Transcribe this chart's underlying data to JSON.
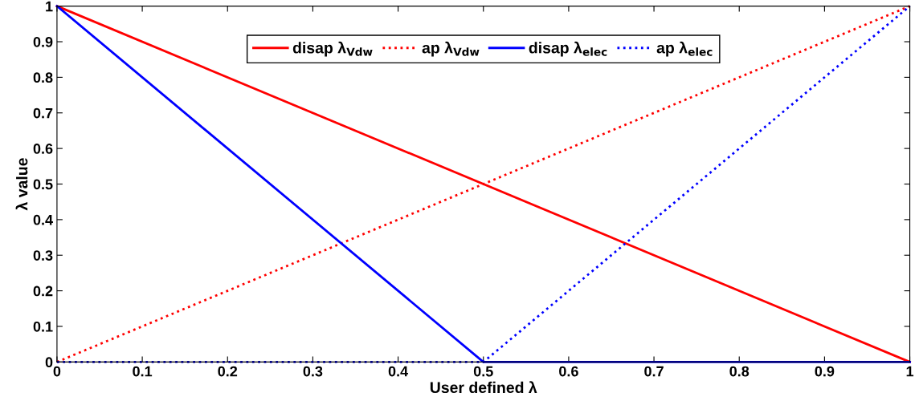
{
  "chart_data": {
    "type": "line",
    "xlabel": "User defined λ",
    "ylabel": "λ value",
    "xlim": [
      0,
      1
    ],
    "ylim": [
      0,
      1
    ],
    "xticks": [
      0,
      0.1,
      0.2,
      0.3,
      0.4,
      0.5,
      0.6,
      0.7,
      0.8,
      0.9,
      1
    ],
    "yticks": [
      0,
      0.1,
      0.2,
      0.3,
      0.4,
      0.5,
      0.6,
      0.7,
      0.8,
      0.9,
      1
    ],
    "grid": false,
    "legend": "top",
    "series": [
      {
        "name": "disap λ$_{Vdw}$",
        "color": "#ff0000",
        "line_style": "solid",
        "x": [
          0,
          1
        ],
        "values": [
          1,
          0
        ]
      },
      {
        "name": "ap λ$_{Vdw}$",
        "color": "#ff0000",
        "line_style": "dotted",
        "x": [
          0,
          1
        ],
        "values": [
          0,
          1
        ]
      },
      {
        "name": "disap λ$_{elec}$",
        "color": "#0000ff",
        "line_style": "solid",
        "x": [
          0,
          0.5,
          1
        ],
        "values": [
          1,
          0,
          0
        ]
      },
      {
        "name": "ap λ$_{elec}$",
        "color": "#0000ff",
        "line_style": "dotted",
        "x": [
          0,
          0.5,
          1
        ],
        "values": [
          0,
          0,
          1
        ]
      }
    ]
  }
}
